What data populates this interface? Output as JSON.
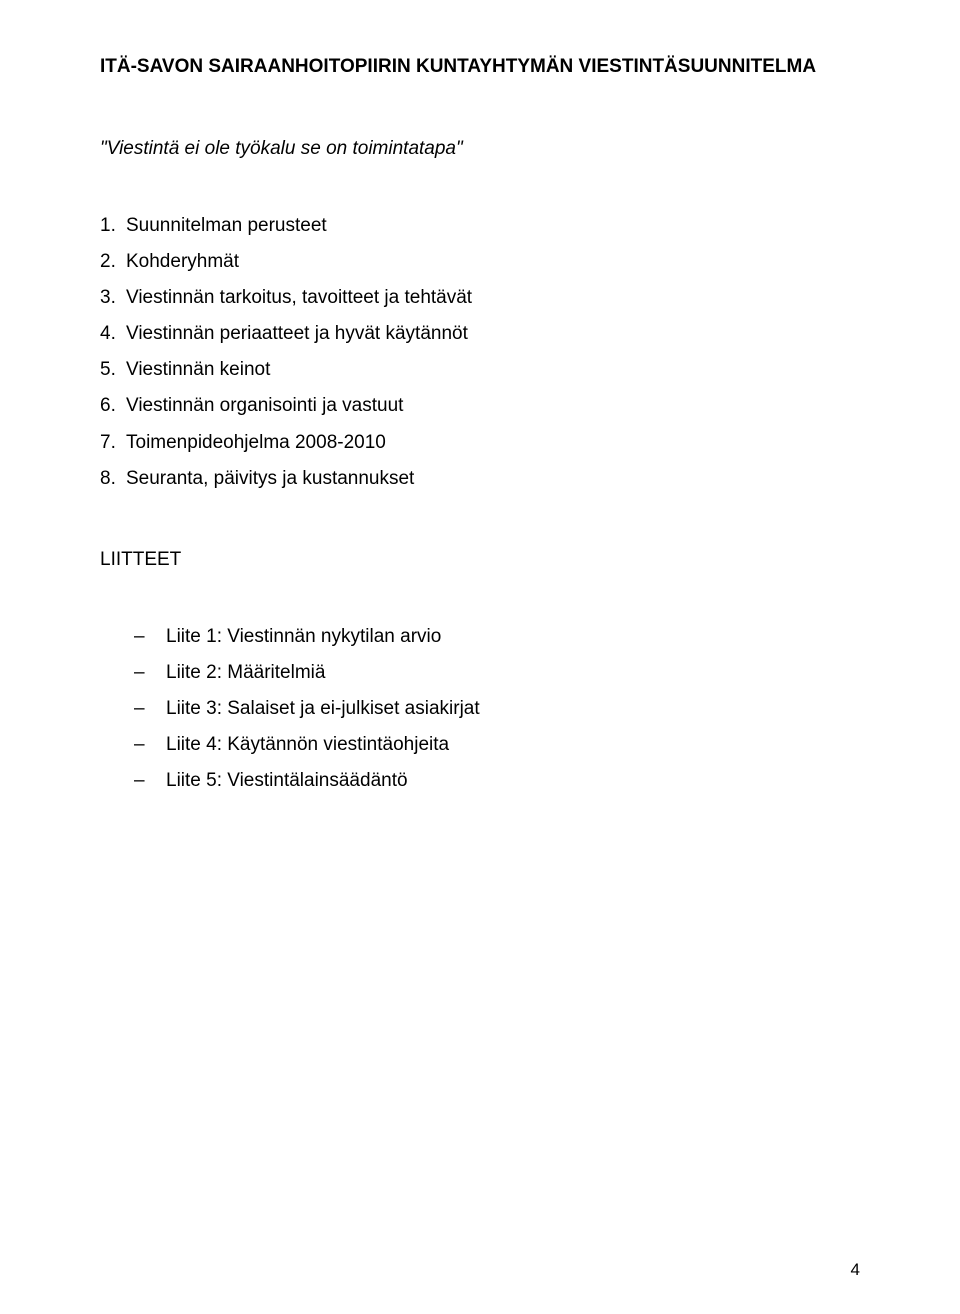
{
  "title": "ITÄ-SAVON SAIRAANHOITOPIIRIN KUNTAYHTYMÄN VIESTINTÄSUUNNITELMA",
  "subtitle": "\"Viestintä ei ole työkalu se on toimintatapa\"",
  "numbered": [
    "Suunnitelman perusteet",
    "Kohderyhmät",
    "Viestinnän tarkoitus, tavoitteet ja tehtävät",
    "Viestinnän periaatteet ja hyvät käytännöt",
    "Viestinnän keinot",
    "Viestinnän organisointi ja vastuut",
    "Toimenpideohjelma 2008-2010",
    "Seuranta, päivitys ja kustannukset"
  ],
  "liitteet_heading": "LIITTEET",
  "liitteet": [
    "Liite 1: Viestinnän nykytilan arvio",
    "Liite 2: Määritelmiä",
    "Liite 3: Salaiset ja ei-julkiset asiakirjat",
    "Liite 4: Käytännön viestintäohjeita",
    "Liite 5: Viestintälainsäädäntö"
  ],
  "page_number": "4",
  "dash": "–"
}
